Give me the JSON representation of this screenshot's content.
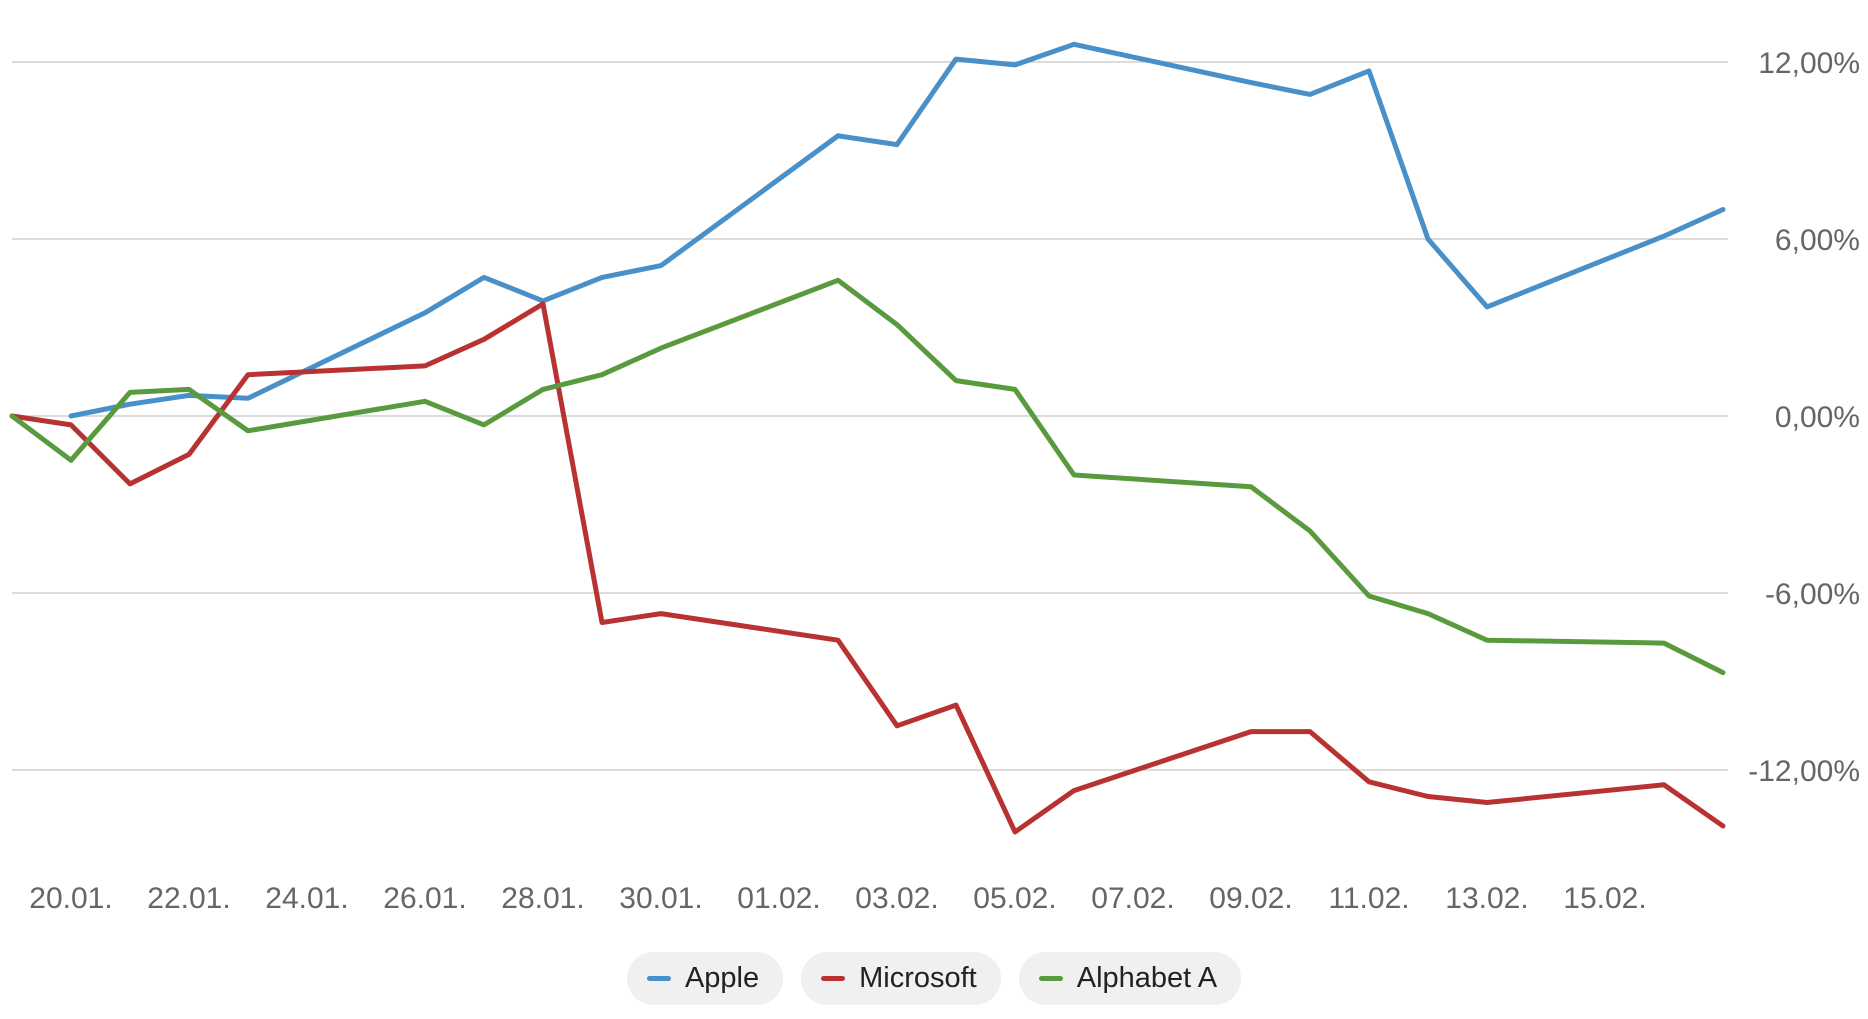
{
  "chart_data": {
    "type": "line",
    "x": [
      "19.01.",
      "20.01.",
      "21.01.",
      "22.01.",
      "23.01.",
      "26.01.",
      "27.01.",
      "28.01.",
      "29.01.",
      "30.01.",
      "02.02.",
      "03.02.",
      "04.02.",
      "05.02.",
      "06.02.",
      "09.02.",
      "10.02.",
      "11.02.",
      "12.02.",
      "13.02.",
      "16.02.",
      "17.02."
    ],
    "x_positions": [
      0,
      1,
      2,
      3,
      4,
      7,
      8,
      9,
      10,
      11,
      14,
      15,
      16,
      17,
      18,
      21,
      22,
      23,
      24,
      25,
      28,
      29
    ],
    "x_tick_labels": [
      "20.01.",
      "22.01.",
      "24.01.",
      "26.01.",
      "28.01.",
      "30.01.",
      "01.02.",
      "03.02.",
      "05.02.",
      "07.02.",
      "09.02.",
      "11.02.",
      "13.02.",
      "15.02."
    ],
    "x_tick_positions": [
      1,
      3,
      5,
      7,
      9,
      11,
      13,
      15,
      17,
      19,
      21,
      23,
      25,
      27
    ],
    "y_ticks": [
      "12,00%",
      "6,00%",
      "0,00%",
      "-6,00%",
      "-12,00%"
    ],
    "y_tick_values": [
      12,
      6,
      0,
      -6,
      -12
    ],
    "ylim": [
      -14.5,
      13.5
    ],
    "y_axis_position": "right",
    "grid": true,
    "legend_position": "bottom-center",
    "series": [
      {
        "name": "Apple",
        "color": "#4a90c8",
        "values": [
          null,
          0.0,
          0.4,
          0.7,
          0.6,
          3.5,
          4.7,
          3.9,
          4.7,
          5.1,
          9.5,
          9.2,
          12.1,
          11.9,
          12.6,
          11.3,
          10.9,
          11.7,
          6.0,
          3.7,
          6.1,
          7.0
        ]
      },
      {
        "name": "Microsoft",
        "color": "#b83232",
        "values": [
          0.0,
          -0.3,
          -2.3,
          -1.3,
          1.4,
          1.7,
          2.6,
          3.8,
          -7.0,
          -6.7,
          -7.6,
          -10.5,
          -9.8,
          -14.1,
          -12.7,
          -10.7,
          -10.7,
          -12.4,
          -12.9,
          -13.1,
          -12.5,
          -13.9
        ]
      },
      {
        "name": "Alphabet A",
        "color": "#5a9a3e",
        "values": [
          0.0,
          -1.5,
          0.8,
          0.9,
          -0.5,
          0.5,
          -0.3,
          0.9,
          1.4,
          2.3,
          4.6,
          3.1,
          1.2,
          0.9,
          -2.0,
          -2.4,
          -3.9,
          -6.1,
          -6.7,
          -7.6,
          -7.7,
          -8.7
        ]
      }
    ]
  }
}
